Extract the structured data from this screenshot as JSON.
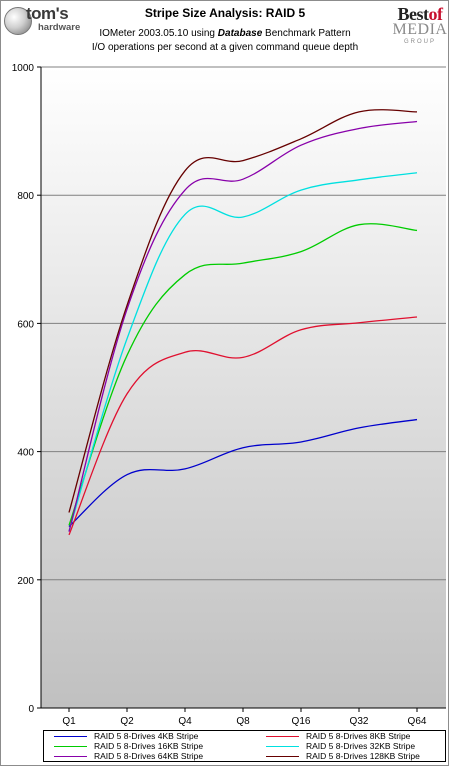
{
  "logos": {
    "left_name": "tom's",
    "left_sub": "hardware",
    "right_best": "Best",
    "right_of": "of",
    "right_media": "MEDIA",
    "right_group": "GROUP"
  },
  "header": {
    "title": "Stripe Size Analysis: RAID 5",
    "subtitle_prefix": "IOMeter 2003.05.10 using ",
    "subtitle_emphasis": "Database",
    "subtitle_suffix": " Benchmark Pattern",
    "subtitle_line2": "I/O operations per second at a given command queue depth"
  },
  "colors": {
    "plot_background_top": "#ffffff",
    "plot_background_bottom": "#c0c0c0",
    "gridline": "#808080"
  },
  "chart_data": {
    "type": "line",
    "title": "Stripe Size Analysis: RAID 5",
    "xlabel": "",
    "ylabel": "",
    "categories": [
      "Q1",
      "Q2",
      "Q4",
      "Q8",
      "Q16",
      "Q32",
      "Q64"
    ],
    "ylim": [
      0,
      1000
    ],
    "yticks": [
      0,
      200,
      400,
      600,
      800,
      1000
    ],
    "grid": true,
    "legend_position": "bottom",
    "series": [
      {
        "name": "RAID 5 8-Drives 4KB Stripe",
        "color": "#0000cc",
        "values": [
          283,
          364,
          373,
          406,
          415,
          437,
          450
        ]
      },
      {
        "name": "RAID 5 8-Drives 8KB Stripe",
        "color": "#e0102f",
        "values": [
          270,
          490,
          555,
          547,
          590,
          601,
          610
        ]
      },
      {
        "name": "RAID 5 8-Drives 16KB Stripe",
        "color": "#00cc00",
        "values": [
          285,
          550,
          676,
          694,
          712,
          754,
          745
        ]
      },
      {
        "name": "RAID 5 8-Drives 32KB Stripe",
        "color": "#00e0e0",
        "values": [
          276,
          576,
          770,
          766,
          808,
          824,
          835
        ]
      },
      {
        "name": "RAID 5 8-Drives 64KB Stripe",
        "color": "#8800aa",
        "values": [
          275,
          622,
          808,
          825,
          878,
          904,
          915
        ]
      },
      {
        "name": "RAID 5 8-Drives 128KB Stripe",
        "color": "#660000",
        "values": [
          305,
          628,
          838,
          854,
          888,
          930,
          930
        ]
      }
    ]
  }
}
